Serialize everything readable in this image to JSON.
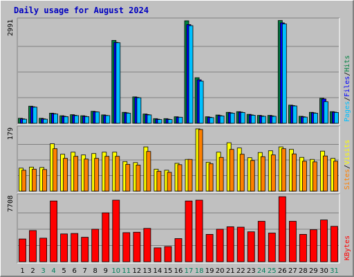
{
  "chart_data": {
    "type": "bar",
    "title": "Daily usage for August 2024",
    "categories": [
      "1",
      "2",
      "3",
      "4",
      "5",
      "6",
      "7",
      "8",
      "9",
      "10",
      "11",
      "12",
      "13",
      "14",
      "15",
      "16",
      "17",
      "18",
      "19",
      "20",
      "21",
      "22",
      "23",
      "24",
      "25",
      "26",
      "27",
      "28",
      "29",
      "30",
      "31"
    ],
    "weekend_days": [
      "3",
      "4",
      "10",
      "11",
      "17",
      "18",
      "24",
      "25",
      "31"
    ],
    "panels": [
      {
        "id": "hits-files-pages",
        "ymax": 2991,
        "max_label": "2991",
        "legend": [
          {
            "text": "Pages",
            "color": "#00c0ff"
          },
          {
            "text": "/",
            "color": "#000000"
          },
          {
            "text": "Files",
            "color": "#0000ff"
          },
          {
            "text": "/",
            "color": "#000000"
          },
          {
            "text": "Hits",
            "color": "#008040"
          }
        ],
        "series": [
          {
            "name": "Hits",
            "color": "#008040",
            "values": [
              145,
              500,
              145,
              295,
              220,
              250,
              220,
              350,
              245,
              2420,
              320,
              770,
              270,
              135,
              135,
              190,
              2991,
              1330,
              190,
              240,
              320,
              340,
              260,
              230,
              230,
              3000,
              530,
              205,
              320,
              730,
              340
            ]
          },
          {
            "name": "Files",
            "color": "#0000ff",
            "values": [
              130,
              480,
              130,
              280,
              205,
              235,
              205,
              335,
              230,
              2360,
              305,
              755,
              255,
              120,
              120,
              175,
              2880,
              1270,
              175,
              225,
              305,
              325,
              245,
              215,
              215,
              2930,
              515,
              190,
              305,
              710,
              325
            ]
          },
          {
            "name": "Pages",
            "color": "#00c0ff",
            "values": [
              120,
              470,
              120,
              270,
              195,
              225,
              195,
              330,
              225,
              2350,
              295,
              745,
              245,
              110,
              110,
              175,
              2850,
              1230,
              165,
              215,
              295,
              315,
              235,
              205,
              205,
              2900,
              505,
              180,
              295,
              630,
              315
            ]
          }
        ]
      },
      {
        "id": "visits-sites",
        "ymax": 179,
        "max_label": "179",
        "legend": [
          {
            "text": "Sites",
            "color": "#ff8000"
          },
          {
            "text": "/",
            "color": "#000000"
          },
          {
            "text": "Visits",
            "color": "#ffff00"
          }
        ],
        "series": [
          {
            "name": "Visits",
            "color": "#ffff00",
            "values": [
              66,
              69,
              68,
              136,
              106,
              112,
              104,
              108,
              112,
              112,
              85,
              82,
              127,
              63,
              60,
              80,
              91,
              179,
              83,
              112,
              139,
              124,
              96,
              111,
              116,
              127,
              120,
              97,
              91,
              115,
              94
            ]
          },
          {
            "name": "Sites",
            "color": "#ff8000",
            "values": [
              60,
              63,
              62,
              122,
              94,
              100,
              92,
              94,
              100,
              100,
              77,
              75,
              114,
              57,
              54,
              76,
              91,
              177,
              79,
              97,
              120,
              106,
              88,
              99,
              104,
              122,
              107,
              86,
              84,
              101,
              86
            ]
          }
        ]
      },
      {
        "id": "kbytes",
        "ymax": 7708,
        "max_label": "7708",
        "legend": [
          {
            "text": "KBytes",
            "color": "#ff0000"
          }
        ],
        "series": [
          {
            "name": "KBytes",
            "color": "#ff0000",
            "values": [
              2700,
              3700,
              2800,
              7200,
              3300,
              3350,
              2900,
              3850,
              5800,
              7300,
              3450,
              3500,
              3950,
              1650,
              1800,
              2750,
              7200,
              7300,
              3250,
              3850,
              4150,
              4100,
              3550,
              4800,
              3400,
              7708,
              4800,
              3250,
              3800,
              4950,
              4200
            ]
          }
        ]
      }
    ]
  }
}
